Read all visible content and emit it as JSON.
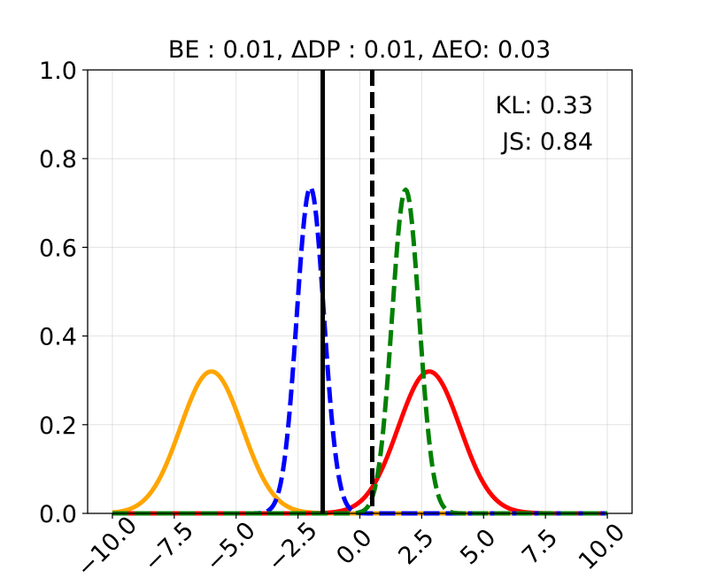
{
  "chart_data": {
    "type": "line",
    "title": "BE : 0.01, ΔDP : 0.01, ΔEO: 0.03",
    "xlabel": "",
    "ylabel": "",
    "xlim": [
      -11,
      11
    ],
    "ylim": [
      0,
      1.0
    ],
    "grid": true,
    "x_ticks": [
      -10.0,
      -7.5,
      -5.0,
      -2.5,
      0.0,
      2.5,
      5.0,
      7.5,
      10.0
    ],
    "x_tick_labels": [
      "−10.0",
      "−7.5",
      "−5.0",
      "−2.5",
      "0.0",
      "2.5",
      "5.0",
      "7.5",
      "10.0"
    ],
    "y_ticks": [
      0.0,
      0.2,
      0.4,
      0.6,
      0.8,
      1.0
    ],
    "y_tick_labels": [
      "0.0",
      "0.2",
      "0.4",
      "0.6",
      "0.8",
      "1.0"
    ],
    "annotations": {
      "kl": "KL: 0.33",
      "js": "JS: 0.84"
    },
    "series": [
      {
        "kind": "gaussian",
        "mean": -6.0,
        "sd": 1.25,
        "peak": 0.32,
        "x_range": [
          -10,
          10
        ],
        "color": "#ffa500",
        "style": "solid"
      },
      {
        "kind": "gaussian",
        "mean": 2.8,
        "sd": 1.25,
        "peak": 0.32,
        "x_range": [
          -10,
          10
        ],
        "color": "#ff0000",
        "style": "solid"
      },
      {
        "kind": "gaussian",
        "mean": -2.0,
        "sd": 0.55,
        "peak": 0.735,
        "x_range": [
          -10,
          10
        ],
        "color": "#0000ff",
        "style": "dashed"
      },
      {
        "kind": "gaussian",
        "mean": 1.85,
        "sd": 0.55,
        "peak": 0.73,
        "x_range": [
          -10,
          10
        ],
        "color": "#008000",
        "style": "dashed"
      }
    ],
    "vertical_lines": [
      {
        "x": -1.5,
        "color": "#000000",
        "style": "solid"
      },
      {
        "x": 0.5,
        "color": "#000000",
        "style": "dashed"
      }
    ]
  }
}
